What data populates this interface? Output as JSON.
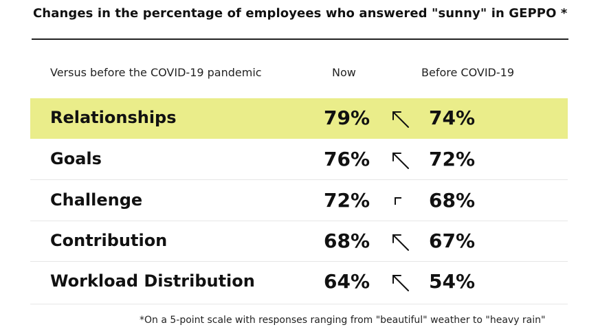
{
  "title": "Changes in the percentage of employees who answered \"sunny\" in GEPPO *",
  "header": {
    "label": "Versus before the COVID-19 pandemic",
    "now": "Now",
    "before": "Before COVID-19"
  },
  "colors": {
    "highlight": "#eaed8a"
  },
  "chart_data": {
    "type": "table",
    "columns": [
      "Versus before the COVID-19 pandemic",
      "Now",
      "Before COVID-19"
    ],
    "rows": [
      {
        "label": "Relationships",
        "now": "79%",
        "before": "74%",
        "arrow": "up-left-arrow",
        "highlighted": true
      },
      {
        "label": "Goals",
        "now": "76%",
        "before": "72%",
        "arrow": "up-left-arrow",
        "highlighted": false
      },
      {
        "label": "Challenge",
        "now": "72%",
        "before": "68%",
        "arrow": "corner-mark",
        "highlighted": false
      },
      {
        "label": "Contribution",
        "now": "68%",
        "before": "67%",
        "arrow": "up-left-arrow",
        "highlighted": false
      },
      {
        "label": "Workload Distribution",
        "now": "64%",
        "before": "54%",
        "arrow": "up-left-arrow",
        "highlighted": false
      }
    ]
  },
  "footnote": "*On a 5-point scale with responses ranging from \"beautiful\" weather to \"heavy rain\""
}
